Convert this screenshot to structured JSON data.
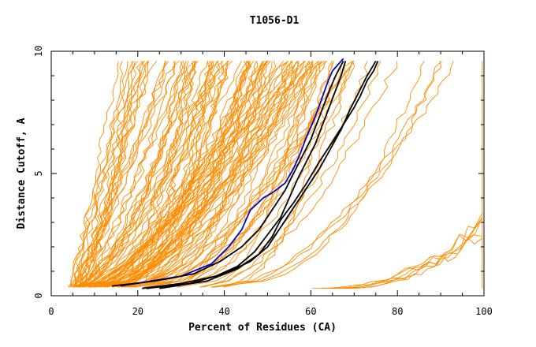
{
  "chart_data": {
    "type": "line",
    "title": "T1056-D1",
    "xlabel": "Percent of Residues (CA)",
    "ylabel": "Distance Cutoff, A",
    "xlim": [
      0,
      100
    ],
    "ylim": [
      0,
      10
    ],
    "x_ticks": [
      "0",
      "20",
      "40",
      "60",
      "80",
      "100"
    ],
    "y_ticks": [
      "0",
      "5",
      "10"
    ],
    "grid": false,
    "colors": {
      "background_models": "#ff8c00",
      "highlight": "#0000cc",
      "reference": "#000000",
      "axes": "#000000"
    },
    "series": [
      {
        "color": "#0000cc",
        "x": [
          16,
          30,
          37,
          41,
          44,
          46,
          49,
          51,
          54,
          56,
          57.5,
          59,
          60.5,
          62,
          63,
          64,
          65,
          67.5
        ],
        "y": [
          0.4,
          0.8,
          1.3,
          2,
          2.7,
          3.5,
          4,
          4.2,
          4.6,
          5.2,
          5.8,
          6.5,
          7.1,
          7.8,
          8.3,
          8.8,
          9.2,
          9.7
        ]
      },
      {
        "color": "#000000",
        "x": [
          14,
          24,
          33,
          39,
          44,
          48,
          51,
          54,
          56,
          58,
          60,
          61.5,
          63,
          64.5,
          66,
          67.5
        ],
        "y": [
          0.4,
          0.6,
          0.9,
          1.4,
          2,
          2.7,
          3.5,
          4.3,
          5,
          5.7,
          6.4,
          7.1,
          7.8,
          8.5,
          9.1,
          9.6
        ]
      },
      {
        "color": "#000000",
        "x": [
          21,
          30,
          38,
          43,
          47,
          50,
          53,
          55,
          57,
          59,
          61,
          62.5,
          64,
          65.5,
          67,
          68
        ],
        "y": [
          0.3,
          0.5,
          0.8,
          1.2,
          1.8,
          2.5,
          3.2,
          4,
          4.8,
          5.5,
          6.2,
          6.9,
          7.6,
          8.3,
          9,
          9.6
        ]
      },
      {
        "color": "#000000",
        "x": [
          22,
          32,
          40,
          46,
          50,
          53,
          56,
          59,
          62,
          64.5,
          67,
          69,
          71,
          73,
          75
        ],
        "y": [
          0.3,
          0.5,
          0.9,
          1.4,
          2,
          2.8,
          3.6,
          4.4,
          5.2,
          6,
          6.8,
          7.6,
          8.3,
          9,
          9.6
        ]
      },
      {
        "color": "#000000",
        "x": [
          25,
          36,
          43,
          48,
          51,
          53,
          56,
          59,
          62,
          65,
          67.5,
          70,
          71.5,
          73,
          74.5,
          75.5
        ],
        "y": [
          0.3,
          0.6,
          1.1,
          1.7,
          2.4,
          3.1,
          3.8,
          4.6,
          5.5,
          6.3,
          7,
          7.7,
          8.2,
          8.8,
          9.2,
          9.6
        ]
      }
    ]
  }
}
